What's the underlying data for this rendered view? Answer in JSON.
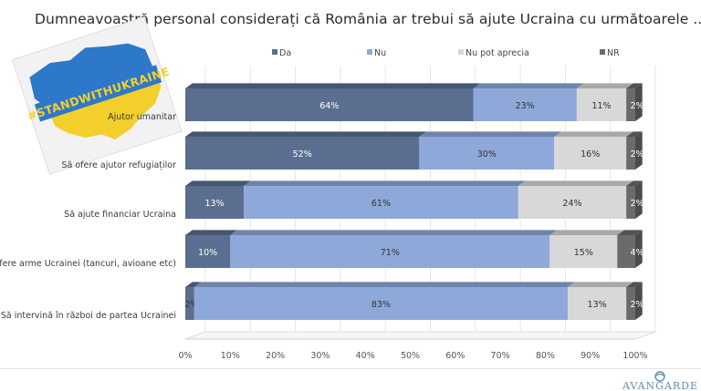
{
  "title": "Dumneavoastră personal considerați că România ar trebui să ajute Ucraina cu următoarele .... ?",
  "sticker": {
    "text": "#STANDWITHUKRAINE",
    "colors": {
      "blue": "#2e78c9",
      "yellow": "#f3cf2c"
    }
  },
  "logo": {
    "text": "AVANGARDE"
  },
  "chart_data": {
    "type": "bar",
    "stacked": true,
    "orientation": "horizontal",
    "categories": [
      "Ajutor umanitar",
      "Să ofere ajutor refugiaților",
      "Să ajute financiar Ucraina",
      "Să ofere arme Ucrainei (tancuri, avioane etc)",
      "Să intervină în război de partea Ucrainei"
    ],
    "series": [
      {
        "name": "Da",
        "values": [
          64,
          52,
          13,
          10,
          2
        ],
        "color": "#5a6f8f"
      },
      {
        "name": "Nu",
        "values": [
          23,
          30,
          61,
          71,
          83
        ],
        "color": "#8ea9d9"
      },
      {
        "name": "Nu pot aprecia",
        "values": [
          11,
          16,
          24,
          15,
          13
        ],
        "color": "#d8d8d8"
      },
      {
        "name": "NR",
        "values": [
          2,
          2,
          2,
          4,
          2
        ],
        "color": "#6b6b6b"
      }
    ],
    "value_labels": [
      [
        "64%",
        "23%",
        "11%",
        "2%"
      ],
      [
        "52%",
        "30%",
        "16%",
        "2%"
      ],
      [
        "13%",
        "61%",
        "24%",
        "2%"
      ],
      [
        "10%",
        "71%",
        "15%",
        "4%"
      ],
      [
        "2%",
        "83%",
        "13%",
        "2%"
      ]
    ],
    "xticks": [
      "0%",
      "10%",
      "20%",
      "30%",
      "40%",
      "50%",
      "60%",
      "70%",
      "80%",
      "90%",
      "100%"
    ],
    "xlim": [
      0,
      100
    ],
    "legend_position": "top",
    "grid": true
  }
}
